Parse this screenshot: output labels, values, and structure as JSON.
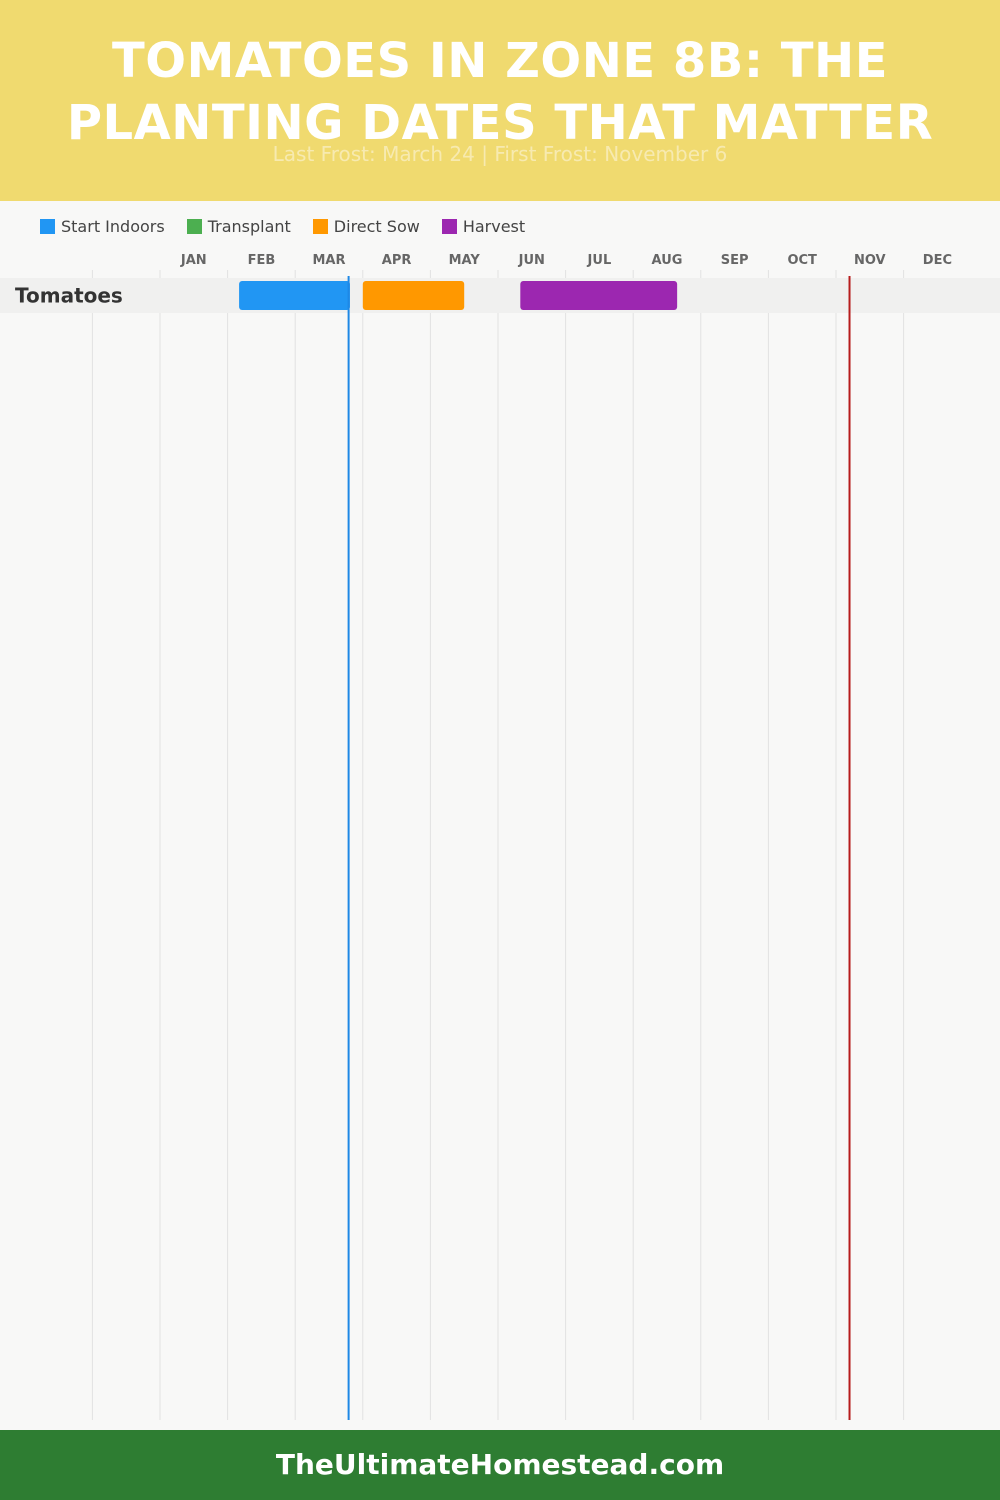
{
  "header": {
    "title_line1": "TOMATOES IN ZONE 8B: THE",
    "title_line2": "PLANTING DATES THAT MATTER",
    "subtitle": "Last Frost: March 24 | First Frost: November 6"
  },
  "legend": [
    {
      "label": "Start Indoors",
      "color": "#2196f3"
    },
    {
      "label": "Transplant",
      "color": "#4caf50"
    },
    {
      "label": "Direct Sow",
      "color": "#ff9800"
    },
    {
      "label": "Harvest",
      "color": "#9c27b0"
    }
  ],
  "footer": {
    "text": "TheUltimateHomestead.com"
  },
  "chart_data": {
    "type": "gantt",
    "title": "TOMATOES IN ZONE 8B: THE PLANTING DATES THAT MATTER",
    "subtitle": "Last Frost: March 24 | First Frost: November 6",
    "months": [
      "JAN",
      "FEB",
      "MAR",
      "APR",
      "MAY",
      "JUN",
      "JUL",
      "AUG",
      "SEP",
      "OCT",
      "NOV",
      "DEC"
    ],
    "x_unit": "month (1 = start of January, 13 = end of December)",
    "rows": [
      {
        "name": "Tomatoes",
        "bars": [
          {
            "phase": "Start Indoors",
            "color": "#2196f3",
            "start": 2.17,
            "end": 3.81
          },
          {
            "phase": "Direct Sow",
            "color": "#ff9800",
            "start": 4.0,
            "end": 5.5
          },
          {
            "phase": "Harvest",
            "color": "#9c27b0",
            "start": 6.33,
            "end": 8.65
          }
        ]
      }
    ],
    "markers": [
      {
        "label": "Last Frost",
        "date": "March 24",
        "position": 3.79,
        "color": "#1e88e5"
      },
      {
        "label": "First Frost",
        "date": "November 6",
        "position": 11.2,
        "color": "#b71c1c"
      }
    ],
    "grid": true,
    "legend_position": "top-left"
  }
}
